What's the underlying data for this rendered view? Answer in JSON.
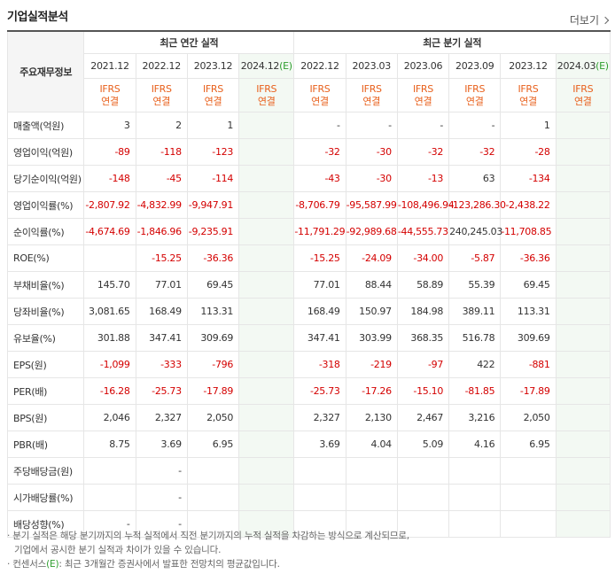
{
  "header": {
    "title": "기업실적분석",
    "more_label": "더보기"
  },
  "table": {
    "label_header": "주요재무정보",
    "group_annual": "최근 연간 실적",
    "group_quarterly": "최근 분기 실적",
    "annual_periods": [
      "2021.12",
      "2022.12",
      "2023.12"
    ],
    "annual_estimate": {
      "base": "2024.12",
      "tag": "(E)"
    },
    "quarter_periods": [
      "2022.12",
      "2023.03",
      "2023.06",
      "2023.09",
      "2023.12"
    ],
    "quarter_estimate": {
      "base": "2024.03",
      "tag": "(E)"
    },
    "ifrs_top": "IFRS",
    "ifrs_bottom": "연결",
    "rows": [
      {
        "label": "매출액(억원)",
        "annual": [
          "3",
          "2",
          "1",
          ""
        ],
        "quarter": [
          "-",
          "-",
          "-",
          "-",
          "1",
          ""
        ]
      },
      {
        "label": "영업이익(억원)",
        "annual": [
          "-89",
          "-118",
          "-123",
          ""
        ],
        "quarter": [
          "-32",
          "-30",
          "-32",
          "-32",
          "-28",
          ""
        ]
      },
      {
        "label": "당기순이익(억원)",
        "annual": [
          "-148",
          "-45",
          "-114",
          ""
        ],
        "quarter": [
          "-43",
          "-30",
          "-13",
          "63",
          "-134",
          ""
        ]
      },
      {
        "label": "영업이익률(%)",
        "annual": [
          "-2,807.92",
          "-4,832.99",
          "-9,947.91",
          ""
        ],
        "quarter": [
          "-8,706.79",
          "-95,587.99",
          "-108,496.94",
          "-123,286.30",
          "-2,438.22",
          ""
        ]
      },
      {
        "label": "순이익률(%)",
        "annual": [
          "-4,674.69",
          "-1,846.96",
          "-9,235.91",
          ""
        ],
        "quarter": [
          "-11,791.29",
          "-92,989.68",
          "-44,555.73",
          "240,245.03",
          "-11,708.85",
          ""
        ]
      },
      {
        "label": "ROE(%)",
        "annual": [
          "",
          "-15.25",
          "-36.36",
          ""
        ],
        "quarter": [
          "-15.25",
          "-24.09",
          "-34.00",
          "-5.87",
          "-36.36",
          ""
        ]
      },
      {
        "label": "부채비율(%)",
        "annual": [
          "145.70",
          "77.01",
          "69.45",
          ""
        ],
        "quarter": [
          "77.01",
          "88.44",
          "58.89",
          "55.39",
          "69.45",
          ""
        ]
      },
      {
        "label": "당좌비율(%)",
        "annual": [
          "3,081.65",
          "168.49",
          "113.31",
          ""
        ],
        "quarter": [
          "168.49",
          "150.97",
          "184.98",
          "389.11",
          "113.31",
          ""
        ]
      },
      {
        "label": "유보율(%)",
        "annual": [
          "301.88",
          "347.41",
          "309.69",
          ""
        ],
        "quarter": [
          "347.41",
          "303.99",
          "368.35",
          "516.78",
          "309.69",
          ""
        ]
      },
      {
        "label": "EPS(원)",
        "annual": [
          "-1,099",
          "-333",
          "-796",
          ""
        ],
        "quarter": [
          "-318",
          "-219",
          "-97",
          "422",
          "-881",
          ""
        ]
      },
      {
        "label": "PER(배)",
        "annual": [
          "-16.28",
          "-25.73",
          "-17.89",
          ""
        ],
        "quarter": [
          "-25.73",
          "-17.26",
          "-15.10",
          "-81.85",
          "-17.89",
          ""
        ]
      },
      {
        "label": "BPS(원)",
        "annual": [
          "2,046",
          "2,327",
          "2,050",
          ""
        ],
        "quarter": [
          "2,327",
          "2,130",
          "2,467",
          "3,216",
          "2,050",
          ""
        ]
      },
      {
        "label": "PBR(배)",
        "annual": [
          "8.75",
          "3.69",
          "6.95",
          ""
        ],
        "quarter": [
          "3.69",
          "4.04",
          "5.09",
          "4.16",
          "6.95",
          ""
        ]
      },
      {
        "label": "주당배당금(원)",
        "annual": [
          "",
          "-",
          "",
          ""
        ],
        "quarter": [
          "",
          "",
          "",
          "",
          "",
          ""
        ]
      },
      {
        "label": "시가배당률(%)",
        "annual": [
          "",
          "-",
          "",
          ""
        ],
        "quarter": [
          "",
          "",
          "",
          "",
          "",
          ""
        ]
      },
      {
        "label": "배당성향(%)",
        "annual": [
          "-",
          "-",
          "",
          ""
        ],
        "quarter": [
          "",
          "",
          "",
          "",
          "",
          ""
        ]
      }
    ]
  },
  "notes": {
    "line1": "· 분기 실적은 해당 분기까지의 누적 실적에서 직전 분기까지의 누적 실적을 차감하는 방식으로 계산되므로,",
    "line2": "기업에서 공시한 분기 실적과 차이가 있을 수 있습니다.",
    "line3_prefix": "· 컨센서스",
    "line3_tag": "(E)",
    "line3_suffix": ": 최근 3개월간 증권사에서 발표한 전망치의 평균값입니다."
  },
  "colors": {
    "negative": "#d40000",
    "ifrs": "#e8601c",
    "estimate_bg": "#f3f9f3",
    "estimate_tag": "#2e9e2e"
  }
}
